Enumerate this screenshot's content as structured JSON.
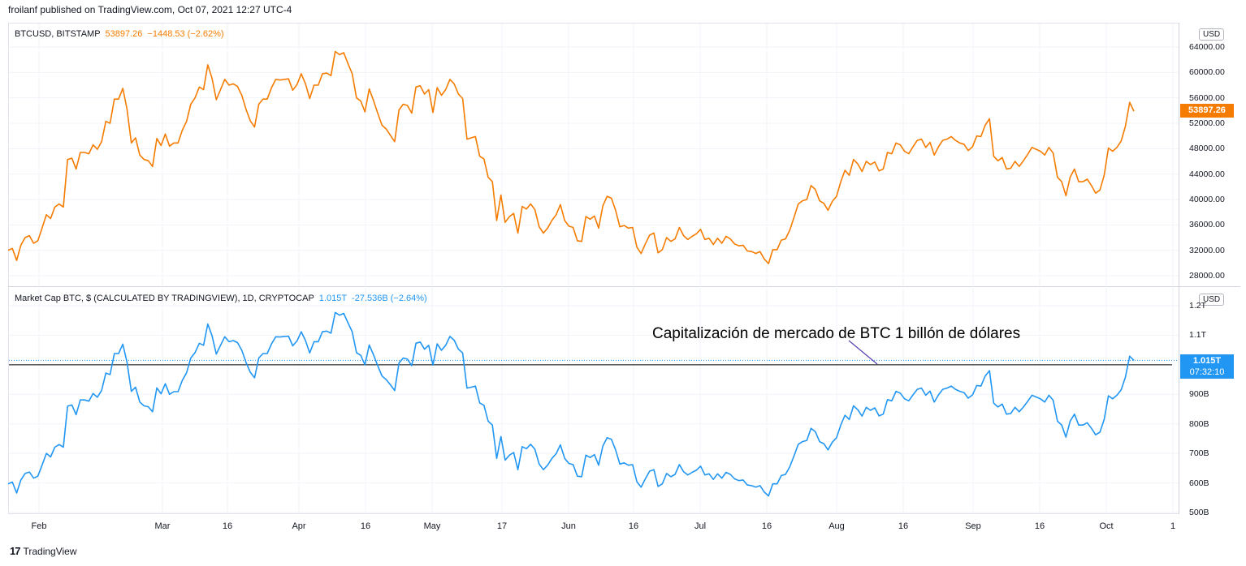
{
  "header": {
    "published_line": "froilanf published on TradingView.com, Oct 07, 2021 12:27 UTC-4"
  },
  "colors": {
    "price_line": "#f57c00",
    "mcap_line": "#2196f3",
    "grid": "#f0f3fa",
    "reference_line": "#000000",
    "arrow": "#5b3fb0"
  },
  "top_pane": {
    "symbol": "BTCUSD, BITSTAMP",
    "last": "53897.26",
    "change": "−1448.53 (−2.62%)",
    "currency": "USD",
    "price_tag": "53897.26",
    "y_ticks": [
      "64000.00",
      "60000.00",
      "56000.00",
      "52000.00",
      "48000.00",
      "44000.00",
      "40000.00",
      "36000.00",
      "32000.00",
      "28000.00"
    ]
  },
  "bottom_pane": {
    "symbol": "Market Cap BTC, $ (CALCULATED BY TRADINGVIEW), 1D, CRYPTOCAP",
    "last": "1.015T",
    "change": "-27.536B (−2.64%)",
    "currency": "USD",
    "price_tag": "1.015T",
    "countdown": "07:32:10",
    "y_ticks": [
      "1.2T",
      "1.1T",
      "900B",
      "800B",
      "700B",
      "600B",
      "500B"
    ]
  },
  "annotation": "Capitalización de mercado de BTC 1 billón de dólares",
  "x_ticks": [
    "Feb",
    "Mar",
    "16",
    "Apr",
    "16",
    "May",
    "17",
    "Jun",
    "16",
    "Jul",
    "16",
    "Aug",
    "16",
    "Sep",
    "16",
    "Oct",
    "1"
  ],
  "brand": "TradingView",
  "chart_data": [
    {
      "type": "line",
      "title": "BTCUSD, BITSTAMP",
      "x_start": "2021-01-24",
      "x_end": "2021-10-07",
      "ylim": [
        26000,
        67000
      ],
      "series": [
        {
          "name": "BTCUSD",
          "values": [
            32000,
            32300,
            30400,
            32800,
            34000,
            34300,
            33100,
            33500,
            35500,
            37600,
            37000,
            38800,
            39300,
            38800,
            46300,
            46500,
            44800,
            47400,
            47400,
            47200,
            48600,
            47900,
            49100,
            52300,
            52000,
            55800,
            55800,
            57500,
            54200,
            48900,
            49700,
            47000,
            46300,
            46100,
            45200,
            49600,
            48500,
            50300,
            48400,
            48900,
            48900,
            50900,
            52300,
            55000,
            56000,
            57700,
            57300,
            61200,
            59100,
            55700,
            57300,
            58900,
            58000,
            58200,
            57800,
            56400,
            54200,
            52400,
            51400,
            55000,
            55800,
            55800,
            57600,
            58900,
            58800,
            58900,
            59000,
            57200,
            58100,
            59800,
            58200,
            55900,
            58000,
            58000,
            59800,
            59900,
            59500,
            63300,
            62800,
            63100,
            61400,
            59800,
            56000,
            55500,
            53800,
            57400,
            55600,
            53600,
            51700,
            51100,
            50100,
            49100,
            54100,
            55000,
            54800,
            53600,
            57700,
            57900,
            56600,
            57300,
            53700,
            57600,
            56400,
            57300,
            58900,
            58200,
            56600,
            55900,
            49500,
            49700,
            49900,
            46800,
            46400,
            43500,
            42800,
            36700,
            40700,
            36400,
            37300,
            37800,
            34700,
            38900,
            38500,
            39300,
            38400,
            35700,
            34700,
            35500,
            36700,
            37600,
            39200,
            36700,
            35800,
            35600,
            33500,
            33400,
            37300,
            36900,
            37400,
            35500,
            39000,
            40500,
            40200,
            38300,
            35700,
            35900,
            35500,
            35600,
            32500,
            31500,
            33000,
            34400,
            34700,
            31600,
            32100,
            34000,
            33400,
            33800,
            35600,
            34300,
            33700,
            34200,
            34600,
            35300,
            33700,
            33900,
            32900,
            33900,
            33100,
            34200,
            33800,
            33000,
            32700,
            32800,
            31900,
            31800,
            31500,
            31800,
            30600,
            29900,
            32100,
            32100,
            33600,
            33800,
            35200,
            37200,
            39300,
            39800,
            40000,
            42200,
            41600,
            39800,
            39400,
            38300,
            39700,
            40500,
            42800,
            44600,
            43800,
            46300,
            45600,
            44400,
            46000,
            45500,
            45900,
            44500,
            44800,
            47400,
            47200,
            48900,
            48600,
            47600,
            47200,
            48300,
            49300,
            49500,
            48200,
            49000,
            47000,
            48300,
            49300,
            49500,
            49900,
            49300,
            48900,
            48700,
            47700,
            48300,
            50000,
            49900,
            51700,
            52700,
            46800,
            46100,
            46600,
            44800,
            44900,
            46000,
            45200,
            46100,
            47100,
            48200,
            47900,
            47600,
            47000,
            48200,
            47300,
            43500,
            42800,
            40600,
            43500,
            44800,
            42800,
            42800,
            43200,
            42200,
            41000,
            41500,
            43800,
            48100,
            47600,
            48200,
            49200,
            51500,
            55300,
            53897
          ]
        }
      ]
    },
    {
      "type": "line",
      "title": "Market Cap BTC, $ (CALCULATED BY TRADINGVIEW), 1D, CRYPTOCAP",
      "x_start": "2021-01-24",
      "x_end": "2021-10-07",
      "ylim": [
        490,
        1250
      ],
      "y_unit": "billion USD",
      "reference_line": 1000,
      "series": [
        {
          "name": "Market Cap BTC",
          "values": [
            597,
            603,
            566,
            610,
            632,
            637,
            616,
            623,
            660,
            700,
            688,
            721,
            730,
            721,
            860,
            864,
            831,
            881,
            881,
            877,
            903,
            890,
            913,
            972,
            967,
            1038,
            1038,
            1070,
            1008,
            910,
            924,
            874,
            861,
            858,
            841,
            922,
            902,
            936,
            900,
            909,
            909,
            947,
            973,
            1023,
            1041,
            1073,
            1066,
            1138,
            1099,
            1036,
            1066,
            1095,
            1078,
            1082,
            1075,
            1049,
            1008,
            975,
            956,
            1023,
            1038,
            1038,
            1071,
            1095,
            1094,
            1096,
            1097,
            1064,
            1081,
            1112,
            1082,
            1040,
            1078,
            1078,
            1112,
            1114,
            1107,
            1177,
            1168,
            1174,
            1142,
            1112,
            1041,
            1032,
            1000,
            1067,
            1034,
            997,
            962,
            950,
            932,
            913,
            1006,
            1023,
            1019,
            997,
            1073,
            1077,
            1053,
            1066,
            999,
            1071,
            1049,
            1066,
            1096,
            1083,
            1053,
            1040,
            921,
            924,
            928,
            871,
            863,
            809,
            796,
            683,
            757,
            677,
            694,
            703,
            645,
            723,
            716,
            731,
            714,
            664,
            645,
            660,
            683,
            699,
            729,
            683,
            666,
            662,
            623,
            621,
            694,
            686,
            696,
            660,
            725,
            753,
            748,
            712,
            664,
            668,
            660,
            662,
            604,
            586,
            614,
            640,
            645,
            588,
            597,
            632,
            621,
            629,
            662,
            638,
            627,
            636,
            643,
            657,
            627,
            631,
            612,
            631,
            616,
            636,
            629,
            614,
            608,
            610,
            593,
            591,
            586,
            591,
            569,
            556,
            597,
            597,
            625,
            629,
            655,
            692,
            731,
            740,
            744,
            785,
            774,
            740,
            733,
            712,
            738,
            753,
            796,
            829,
            815,
            861,
            848,
            826,
            856,
            846,
            854,
            827,
            833,
            882,
            878,
            910,
            904,
            885,
            878,
            898,
            917,
            921,
            897,
            911,
            874,
            898,
            917,
            921,
            928,
            917,
            910,
            906,
            887,
            898,
            930,
            928,
            962,
            980,
            870,
            857,
            867,
            833,
            835,
            856,
            841,
            857,
            876,
            897,
            891,
            885,
            874,
            897,
            880,
            809,
            796,
            755,
            809,
            833,
            796,
            796,
            804,
            785,
            763,
            772,
            815,
            895,
            885,
            897,
            915,
            958,
            1029,
            1015
          ]
        }
      ]
    }
  ]
}
